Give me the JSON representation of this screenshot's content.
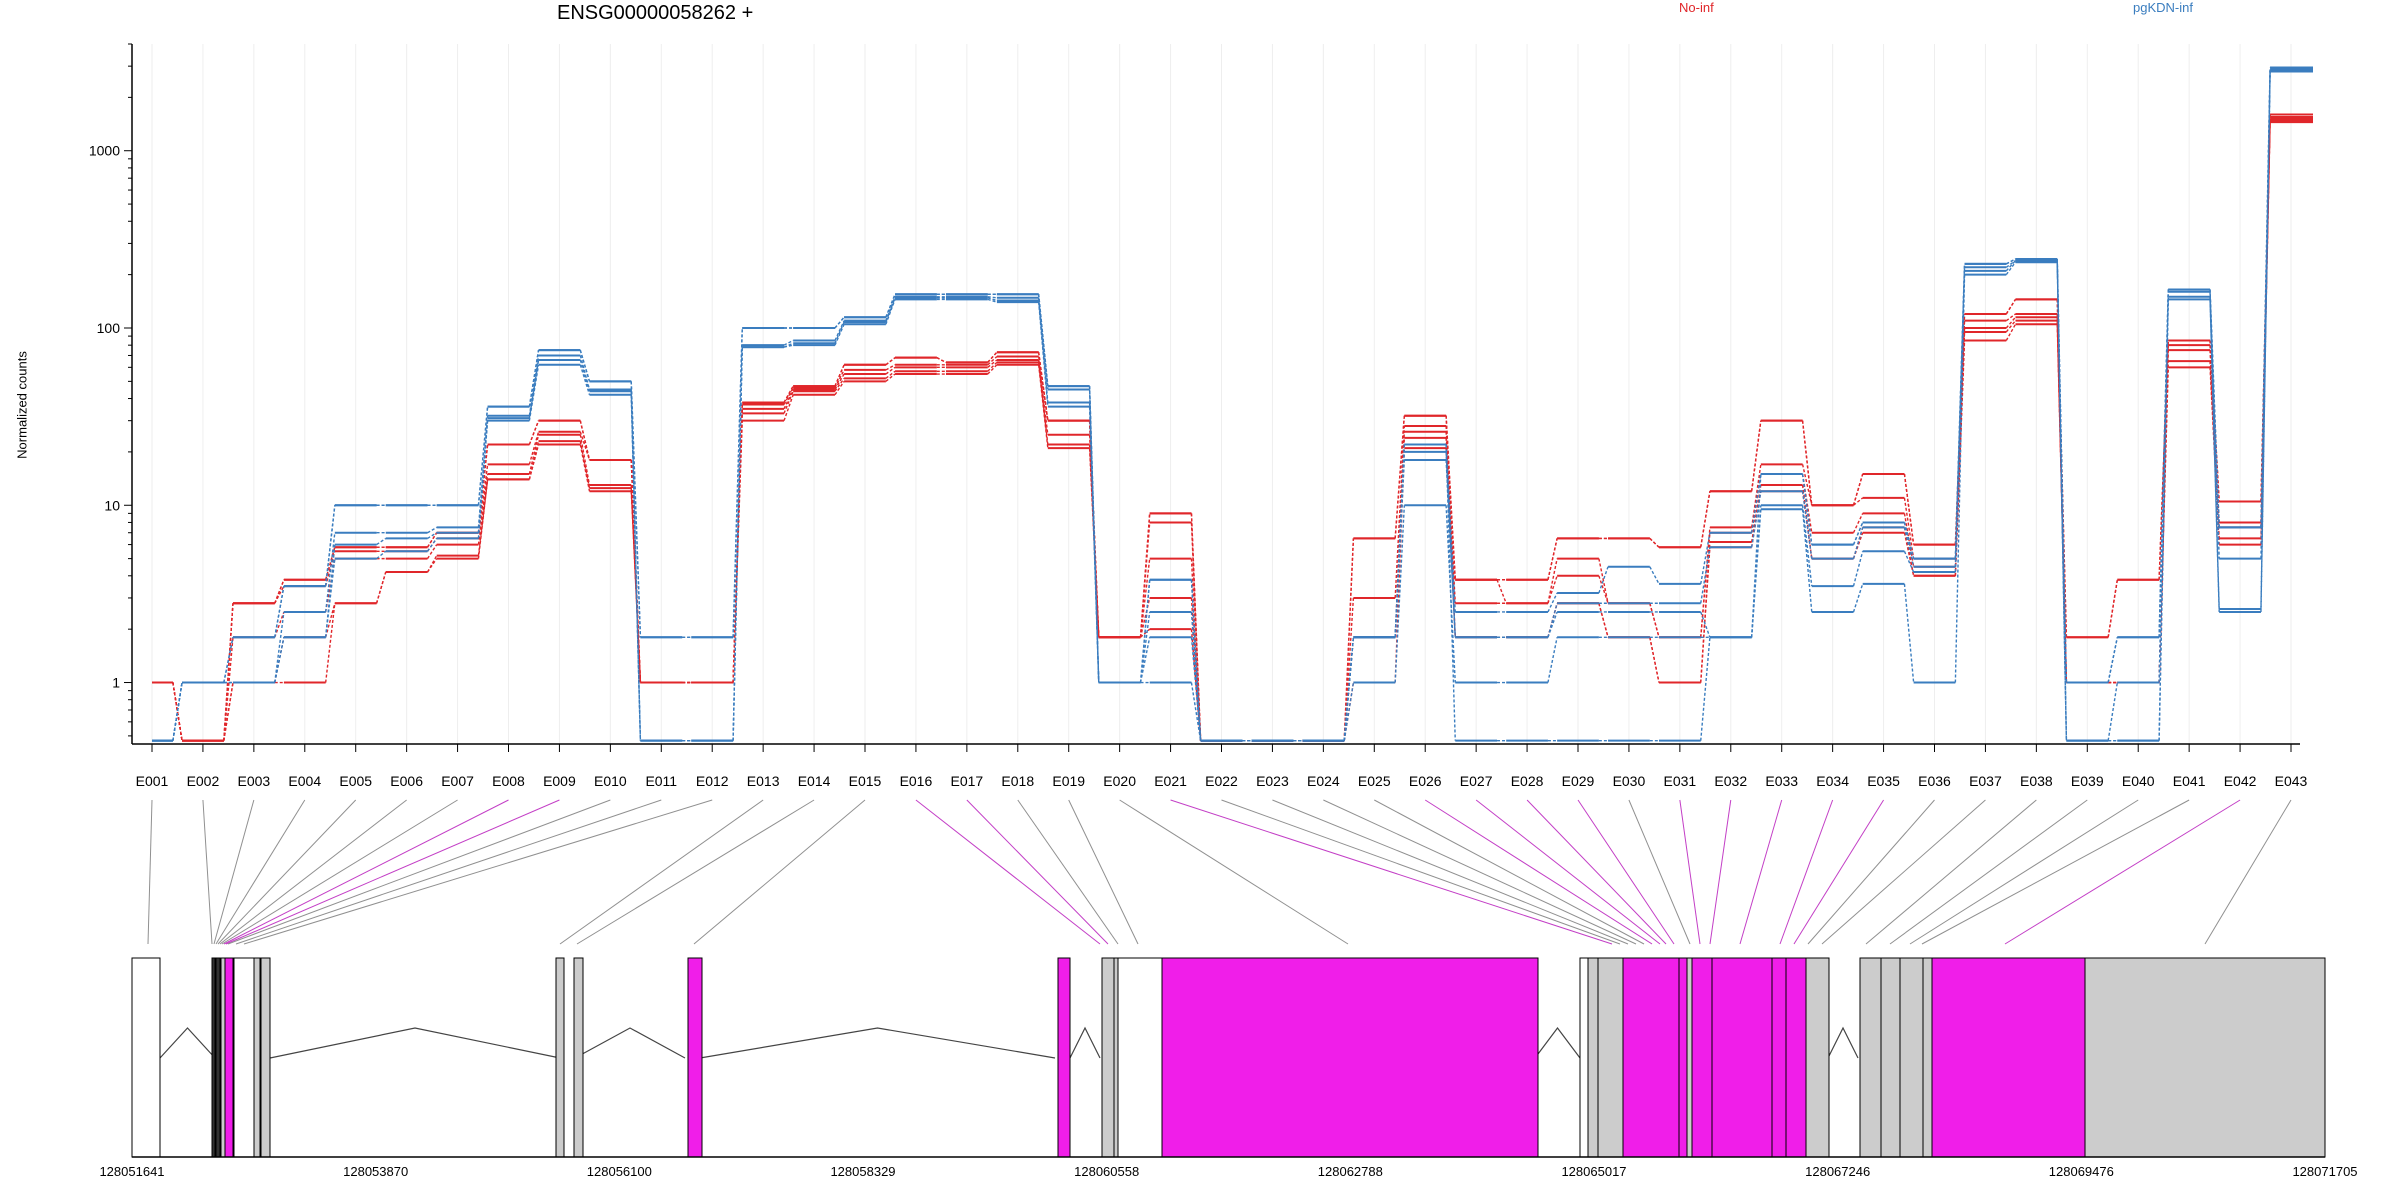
{
  "header": {
    "title": "ENSG00000058262 +"
  },
  "legend": [
    {
      "label": "No-inf",
      "color": "#e0262a"
    },
    {
      "label": "pgKDN-inf",
      "color": "#3a7dbf"
    }
  ],
  "axes": {
    "ylabel": "Normalized counts"
  },
  "colors": {
    "exon_fill": "#cccccc",
    "highlight_fill": "#f01ee9",
    "connector_gray": "#909090",
    "connector_magenta": "#c33fc6"
  },
  "chart_data": {
    "type": "line",
    "yscale": "log",
    "ylim": [
      0.45,
      4000
    ],
    "yticks": [
      1,
      10,
      100,
      1000
    ],
    "ytick_labels": [
      "1",
      "10",
      "100",
      "1000"
    ],
    "xlabel": "",
    "ylabel": "Normalized counts",
    "title": "ENSG00000058262 +",
    "grid": "vertical",
    "categories": [
      "E001",
      "E002",
      "E003",
      "E004",
      "E005",
      "E006",
      "E007",
      "E008",
      "E009",
      "E010",
      "E011",
      "E012",
      "E013",
      "E014",
      "E015",
      "E016",
      "E017",
      "E018",
      "E019",
      "E020",
      "E021",
      "E022",
      "E023",
      "E024",
      "E025",
      "E026",
      "E027",
      "E028",
      "E029",
      "E030",
      "E031",
      "E032",
      "E033",
      "E034",
      "E035",
      "E036",
      "E037",
      "E038",
      "E039",
      "E040",
      "E041",
      "E042",
      "E043"
    ],
    "series": [
      {
        "name": "No-inf",
        "group": "No-inf",
        "values": [
          1,
          0.47,
          1,
          1.8,
          2.8,
          4.2,
          5,
          14,
          22,
          12,
          1,
          1,
          30,
          42,
          50,
          55,
          55,
          62,
          21,
          1.8,
          2,
          0.47,
          0.47,
          0.47,
          1,
          21,
          1.8,
          1.8,
          2.8,
          1.8,
          1,
          5.8,
          12,
          5,
          7,
          4,
          85,
          105,
          1,
          1,
          60,
          6,
          1450
        ]
      },
      {
        "name": "No-inf",
        "group": "No-inf",
        "values": [
          1,
          0.47,
          1,
          1,
          2.8,
          4.2,
          5.2,
          14,
          23,
          12.5,
          1,
          1,
          33,
          44,
          52,
          57,
          57,
          64,
          22,
          1.8,
          3,
          0.47,
          0.47,
          0.47,
          1.8,
          24,
          1.8,
          1.8,
          2.8,
          1.8,
          1,
          6.2,
          13,
          5,
          7.5,
          4,
          95,
          110,
          1,
          1,
          65,
          6.5,
          1480
        ]
      },
      {
        "name": "No-inf",
        "group": "No-inf",
        "values": [
          1,
          0.47,
          1.8,
          2.5,
          5,
          5,
          6,
          15,
          25,
          13,
          1,
          1,
          35,
          45,
          55,
          60,
          60,
          66,
          25,
          1.8,
          5,
          0.47,
          0.47,
          0.47,
          1.8,
          26,
          2.8,
          2.8,
          4,
          2.8,
          1.8,
          7,
          15,
          7,
          9,
          4.5,
          100,
          115,
          1,
          1,
          75,
          7.5,
          1520
        ]
      },
      {
        "name": "No-inf",
        "group": "No-inf",
        "values": [
          1,
          0.47,
          2.8,
          3.5,
          5.5,
          5.5,
          6.5,
          17,
          26,
          18,
          1,
          1,
          37,
          46,
          58,
          62,
          62,
          69,
          30,
          1.8,
          8,
          0.47,
          0.47,
          0.47,
          3,
          28,
          3.8,
          2.8,
          5,
          2.8,
          1.8,
          7.5,
          17,
          10,
          11,
          5,
          110,
          120,
          1,
          1,
          80,
          8,
          1550
        ]
      },
      {
        "name": "No-inf",
        "group": "No-inf",
        "values": [
          1,
          0.47,
          2.8,
          3.8,
          5.8,
          5.8,
          7,
          22,
          30,
          18,
          1,
          1,
          38,
          47,
          62,
          68,
          64,
          73,
          30,
          1.8,
          9,
          0.47,
          0.47,
          0.47,
          6.5,
          32,
          3.8,
          3.8,
          6.5,
          6.5,
          5.8,
          12,
          30,
          10,
          15,
          6,
          120,
          145,
          1.8,
          3.8,
          85,
          10.5,
          1600
        ]
      },
      {
        "name": "No-inf",
        "group": "No-inf",
        "values": [
          1,
          0.47,
          2.8,
          3.8,
          5.8,
          5.8,
          7,
          22,
          30,
          18,
          1,
          1,
          38,
          47,
          62,
          68,
          64,
          73,
          30,
          1.8,
          9,
          0.47,
          0.47,
          0.47,
          6.5,
          32,
          3.8,
          3.8,
          6.5,
          6.5,
          5.8,
          12,
          30,
          10,
          15,
          6,
          120,
          145,
          1.8,
          3.8,
          85,
          10.5,
          1600
        ]
      },
      {
        "name": "pgKDN-inf",
        "group": "pgKDN-inf",
        "values": [
          0.47,
          1,
          1,
          1.8,
          5,
          5.5,
          6.5,
          30,
          62,
          42,
          0.47,
          0.47,
          78,
          80,
          105,
          145,
          145,
          140,
          36,
          1,
          1,
          0.47,
          0.47,
          0.47,
          1,
          10,
          1,
          1,
          1.8,
          1.8,
          1.8,
          1.8,
          9.5,
          2.5,
          3.6,
          1,
          200,
          235,
          0.47,
          0.47,
          145,
          2.5,
          2800
        ]
      },
      {
        "name": "pgKDN-inf",
        "group": "pgKDN-inf",
        "values": [
          0.47,
          1,
          1,
          1.8,
          6,
          6.5,
          7,
          31,
          66,
          44,
          0.47,
          0.47,
          78,
          82,
          108,
          148,
          148,
          143,
          38,
          1,
          1.8,
          0.47,
          0.47,
          0.47,
          1.8,
          18,
          1.8,
          1.8,
          2.5,
          2.5,
          2.5,
          1.8,
          10,
          3.5,
          5.5,
          4.2,
          210,
          240,
          0.47,
          0.47,
          150,
          2.6,
          2850
        ]
      },
      {
        "name": "pgKDN-inf",
        "group": "pgKDN-inf",
        "values": [
          0.47,
          1,
          1,
          2.5,
          7,
          7,
          7.5,
          32,
          70,
          45,
          0.47,
          0.47,
          80,
          85,
          110,
          150,
          150,
          148,
          45,
          1,
          2.5,
          0.47,
          0.47,
          0.47,
          1.8,
          20,
          1.8,
          1.8,
          2.8,
          2.8,
          2.8,
          5.8,
          12,
          5,
          7.5,
          4.5,
          220,
          240,
          0.47,
          1,
          160,
          5,
          2900
        ]
      },
      {
        "name": "pgKDN-inf",
        "group": "pgKDN-inf",
        "values": [
          0.47,
          1,
          1.8,
          3.5,
          10,
          10,
          10,
          36,
          75,
          50,
          1.8,
          1.8,
          100,
          100,
          115,
          155,
          155,
          155,
          47,
          1,
          3.8,
          0.47,
          0.47,
          0.47,
          1.8,
          22,
          2.5,
          2.5,
          3.2,
          4.5,
          3.6,
          7,
          15,
          6,
          8,
          5,
          230,
          245,
          1,
          1.8,
          165,
          7.5,
          2950
        ]
      },
      {
        "name": "pgKDN-inf",
        "group": "pgKDN-inf",
        "values": [
          0.47,
          1,
          1.8,
          3.5,
          10,
          10,
          10,
          36,
          75,
          50,
          1.8,
          1.8,
          100,
          100,
          115,
          155,
          155,
          155,
          47,
          1,
          3.8,
          0.47,
          0.47,
          0.47,
          1.8,
          22,
          0.47,
          0.47,
          0.47,
          0.47,
          0.47,
          1.8,
          15,
          6,
          8,
          5,
          230,
          245,
          1,
          1.8,
          165,
          7.5,
          2950
        ]
      }
    ],
    "genomic_axis": {
      "tick_labels": [
        "128051641",
        "128053870",
        "128056100",
        "128058329",
        "128060558",
        "128062788",
        "128065017",
        "128067246",
        "128069476",
        "128071705"
      ],
      "range": [
        128051641,
        128071705
      ]
    },
    "exon_highlight": [
      false,
      false,
      false,
      false,
      false,
      false,
      false,
      true,
      true,
      false,
      false,
      false,
      false,
      false,
      false,
      true,
      true,
      false,
      false,
      false,
      true,
      false,
      false,
      false,
      false,
      true,
      true,
      true,
      true,
      false,
      true,
      true,
      true,
      true,
      true,
      false,
      false,
      false,
      false,
      false,
      false,
      true,
      false
    ]
  }
}
